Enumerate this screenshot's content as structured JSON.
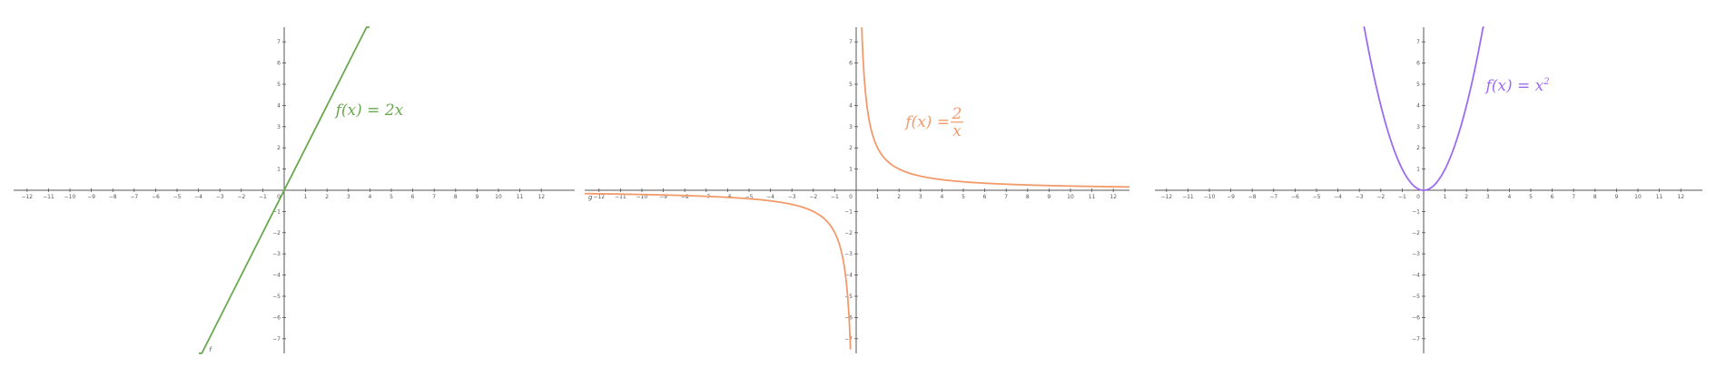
{
  "chart_data": [
    {
      "type": "line",
      "function": "2x",
      "label": {
        "lhs": "f(x) = ",
        "rhs": "2x"
      },
      "color": "#6aa84f",
      "xlim": [
        -12.9,
        12.9
      ],
      "ylim": [
        -7.5,
        7.8
      ],
      "xticks": [
        -12,
        -11,
        -10,
        -9,
        -8,
        -7,
        -6,
        -5,
        -4,
        -3,
        -2,
        -1,
        1,
        2,
        3,
        4,
        5,
        6,
        7,
        8,
        9,
        10,
        11,
        12
      ],
      "yticks": [
        -7,
        -6,
        -5,
        -4,
        -3,
        -2,
        -1,
        1,
        2,
        3,
        4,
        5,
        6,
        7
      ],
      "origin_label": "0",
      "curve_label": "f",
      "label_anchor": [
        2.4,
        3.55
      ]
    },
    {
      "type": "line",
      "function": "2/x",
      "label": {
        "lhs": "f(x) = ",
        "num": "2",
        "den": "x"
      },
      "color": "#f39a6b",
      "xlim": [
        -12.9,
        12.9
      ],
      "ylim": [
        -7.5,
        7.8
      ],
      "xticks": [
        -12,
        -11,
        -10,
        -9,
        -8,
        -7,
        -6,
        -5,
        -4,
        -3,
        -2,
        -1,
        1,
        2,
        3,
        4,
        5,
        6,
        7,
        8,
        9,
        10,
        11,
        12
      ],
      "yticks": [
        -7,
        -6,
        -5,
        -4,
        -3,
        -2,
        -1,
        1,
        2,
        3,
        4,
        5,
        6,
        7
      ],
      "origin_label": "0",
      "curve_label": "g",
      "label_anchor": [
        2.3,
        3.0
      ]
    },
    {
      "type": "line",
      "function": "x^2",
      "label": {
        "lhs": "f(x) = ",
        "base": "x",
        "exp": "2"
      },
      "color": "#9b6cf0",
      "xlim": [
        -12.9,
        12.9
      ],
      "ylim": [
        -7.5,
        7.8
      ],
      "xticks": [
        -12,
        -11,
        -10,
        -9,
        -8,
        -7,
        -6,
        -5,
        -4,
        -3,
        -2,
        -1,
        1,
        2,
        3,
        4,
        5,
        6,
        7,
        8,
        9,
        10,
        11,
        12
      ],
      "yticks": [
        -7,
        -6,
        -5,
        -4,
        -3,
        -2,
        -1,
        1,
        2,
        3,
        4,
        5,
        6,
        7
      ],
      "origin_label": "0",
      "label_anchor": [
        2.9,
        4.7
      ]
    }
  ]
}
